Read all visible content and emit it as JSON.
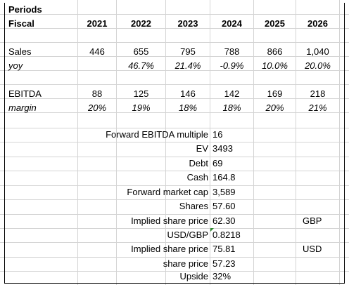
{
  "header": {
    "periods_label": "Periods",
    "fiscal_label": "Fiscal",
    "years": [
      "2021",
      "2022",
      "2023",
      "2024",
      "2025",
      "2026"
    ]
  },
  "sales": {
    "label": "Sales",
    "values": [
      "446",
      "655",
      "795",
      "788",
      "866",
      "1,040"
    ]
  },
  "yoy": {
    "label": "yoy",
    "values": [
      "",
      "46.7%",
      "21.4%",
      "-0.9%",
      "10.0%",
      "20.0%"
    ]
  },
  "ebitda": {
    "label": "EBITDA",
    "values": [
      "88",
      "125",
      "146",
      "142",
      "169",
      "218"
    ]
  },
  "margin": {
    "label": "margin",
    "values": [
      "20%",
      "19%",
      "18%",
      "18%",
      "20%",
      "21%"
    ]
  },
  "valuation": [
    {
      "label": "Forward EBITDA multiple",
      "value": "16",
      "unit": ""
    },
    {
      "label": "EV",
      "value": "3493",
      "unit": ""
    },
    {
      "label": "Debt",
      "value": "69",
      "unit": ""
    },
    {
      "label": "Cash",
      "value": "164.8",
      "unit": ""
    },
    {
      "label": "Forward market cap",
      "value": "3,589",
      "unit": ""
    },
    {
      "label": "Shares",
      "value": "57.60",
      "unit": ""
    },
    {
      "label": "Implied share price",
      "value": "62.30",
      "unit": "GBP"
    },
    {
      "label": "USD/GBP",
      "value": "0.8218",
      "unit": ""
    },
    {
      "label": "Implied share price",
      "value": "75.81",
      "unit": "USD"
    },
    {
      "label": "share price",
      "value": "57.23",
      "unit": ""
    },
    {
      "label": "Upside",
      "value": "32%",
      "unit": ""
    }
  ],
  "colors": {
    "gridline": "#d4d4d4",
    "comment_marker": "#2e8b2e"
  }
}
